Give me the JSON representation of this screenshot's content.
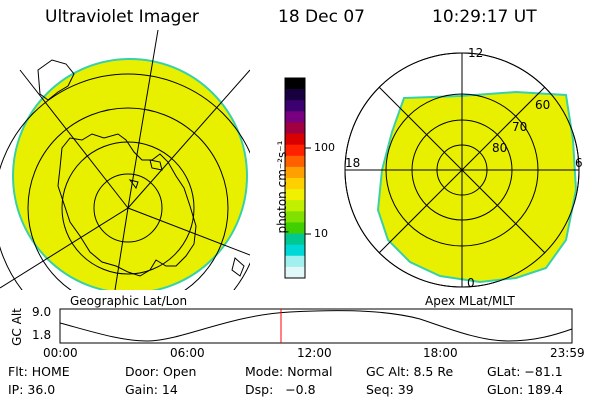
{
  "header": {
    "instrument": "Ultraviolet Imager",
    "date": "18 Dec 07",
    "time": "10:29:17 UT"
  },
  "left_map": {
    "label": "Geographic Lat/Lon",
    "fill_color": "#e8f000",
    "edge_color": "#38d0a8"
  },
  "right_map": {
    "label": "Apex MLat/MLT",
    "mlt_labels": {
      "top": "12",
      "left": "18",
      "right": "6",
      "bottom": "0"
    },
    "lat_labels": [
      "60",
      "70",
      "80"
    ],
    "fill_color": "#e8f000"
  },
  "colorbar": {
    "unit_label": "photon cm⁻²s⁻¹",
    "ticks": [
      "100",
      "10"
    ],
    "colors": [
      "#000000",
      "#180040",
      "#3c0070",
      "#780080",
      "#a00040",
      "#d80000",
      "#ff2000",
      "#ff6000",
      "#ffa000",
      "#ffd000",
      "#f0f000",
      "#c0f000",
      "#80e000",
      "#40d000",
      "#00c890",
      "#00d8d8",
      "#a0f0f0",
      "#e0f8f8"
    ]
  },
  "altitude_plot": {
    "ylabel": "GC Alt",
    "yticks": [
      "9.0",
      "1.8"
    ],
    "xticks": [
      "00:00",
      "06:00",
      "12:00",
      "18:00",
      "23:59"
    ],
    "current_marker_color": "#ff0000"
  },
  "info": {
    "rows": [
      [
        "Flt: HOME",
        "Door: Open",
        "Mode: Normal",
        "GC Alt: 8.5 Re",
        "GLat: −81.1"
      ],
      [
        "IP: 36.0",
        "Gain: 14",
        "Dsp:   −0.8",
        "Seq: 39",
        "GLon: 189.4"
      ]
    ]
  }
}
